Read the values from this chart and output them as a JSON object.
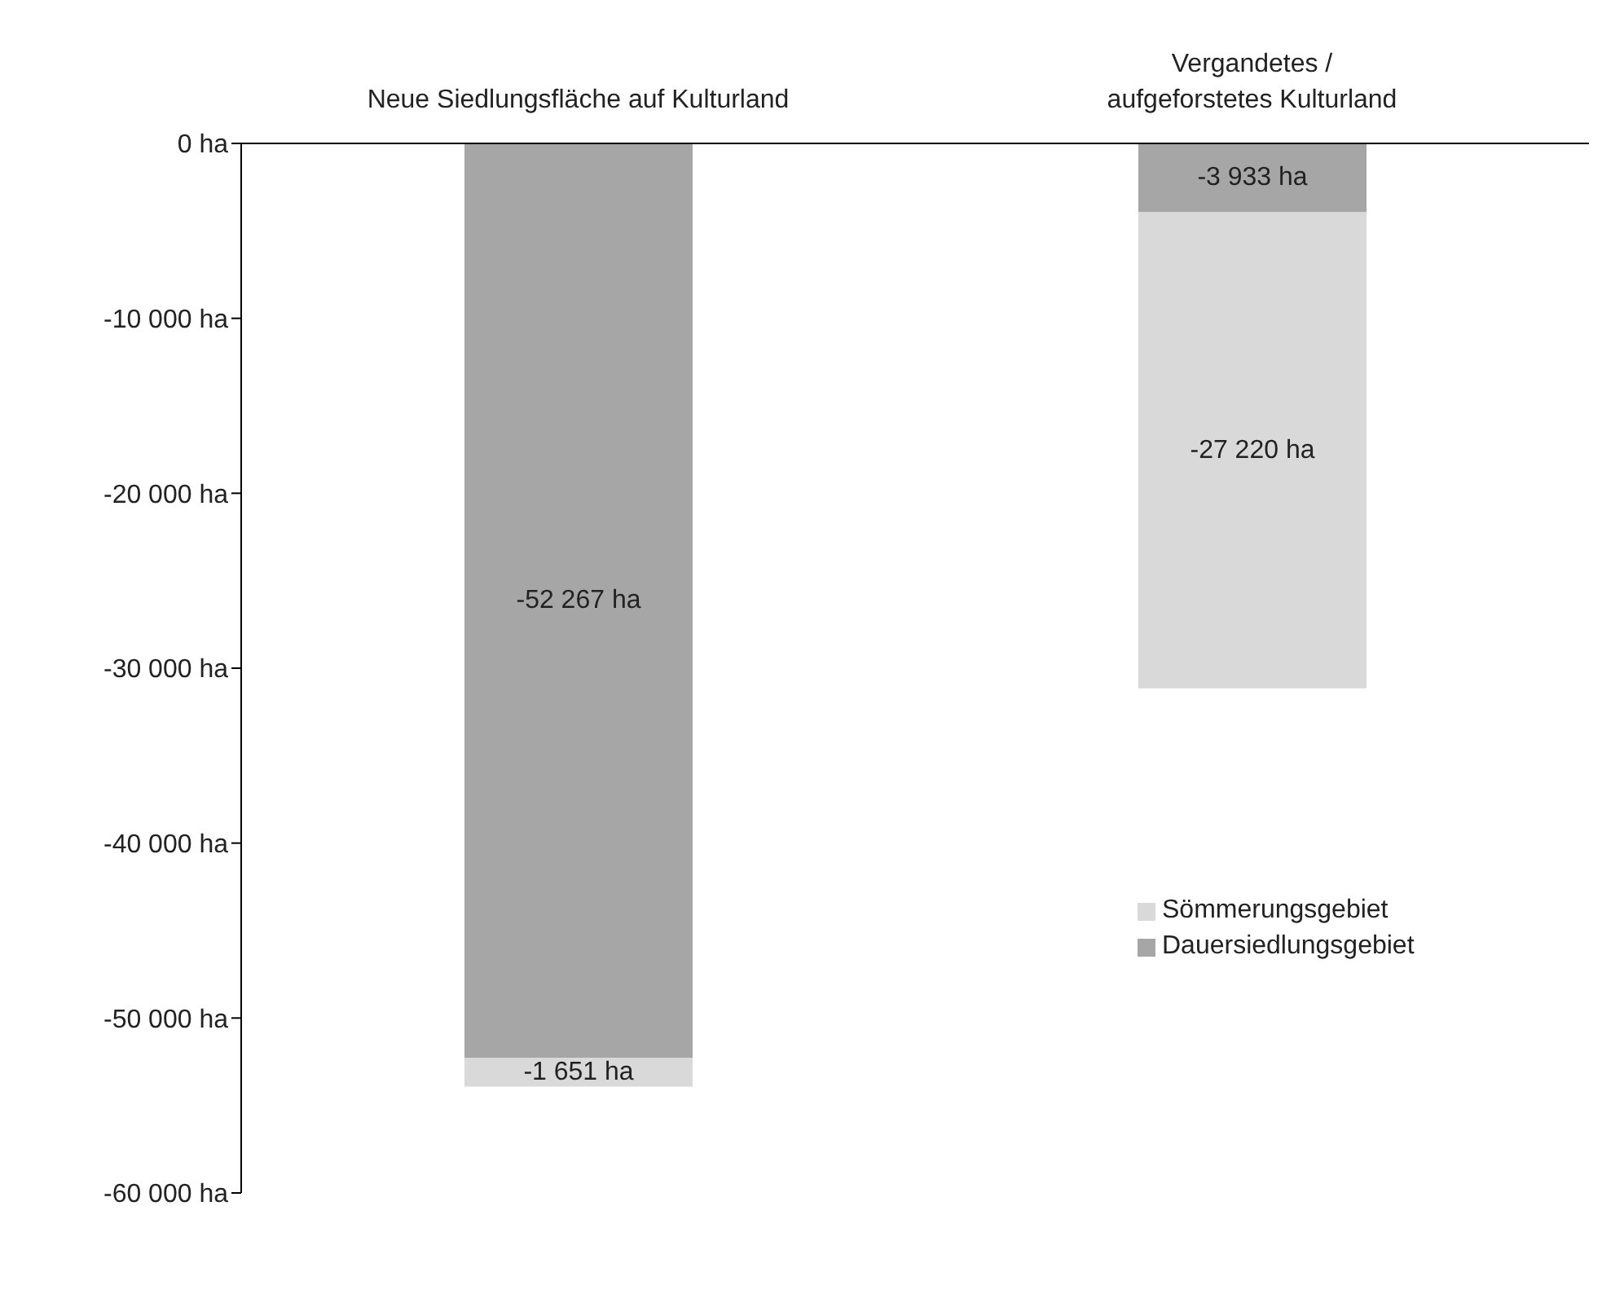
{
  "chart_data": {
    "type": "bar",
    "stacked": true,
    "categories": [
      "Neue Siedlungsfläche auf Kulturland",
      "Vergandetes / aufgeforstetes Kulturland"
    ],
    "series": [
      {
        "name": "Dauersiedlungsgebiet",
        "color": "#a6a6a6",
        "values": [
          -52267,
          -3933
        ],
        "value_labels": [
          "-52 267 ha",
          "-3 933 ha"
        ]
      },
      {
        "name": "Sömmerungsgebiet",
        "color": "#d9d9d9",
        "values": [
          -1651,
          -27220
        ],
        "value_labels": [
          "-1 651 ha",
          "-27 220 ha"
        ]
      }
    ],
    "ylim": [
      -60000,
      0
    ],
    "yticks": [
      {
        "value": 0,
        "label": "0 ha"
      },
      {
        "value": -10000,
        "label": "-10 000 ha"
      },
      {
        "value": -20000,
        "label": "-20 000 ha"
      },
      {
        "value": -30000,
        "label": "-30 000 ha"
      },
      {
        "value": -40000,
        "label": "-40 000 ha"
      },
      {
        "value": -50000,
        "label": "-50 000 ha"
      },
      {
        "value": -60000,
        "label": "-60 000 ha"
      }
    ],
    "grid": false,
    "legend": "right"
  }
}
